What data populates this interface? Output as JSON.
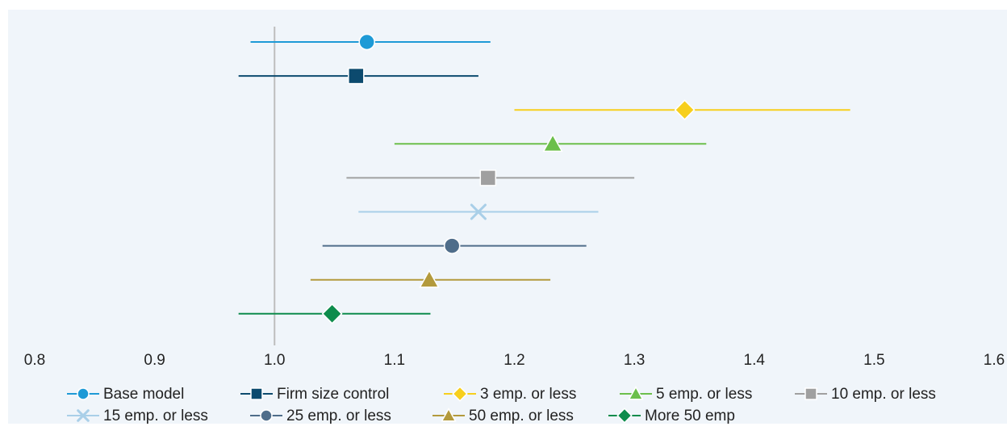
{
  "chart_data": {
    "type": "forest-plot",
    "title": "",
    "xlabel": "",
    "ylabel": "",
    "xlim": [
      0.8,
      1.6
    ],
    "x_ticks": [
      "0.8",
      "0.9",
      "1.0",
      "1.1",
      "1.2",
      "1.3",
      "1.4",
      "1.5",
      "1.6"
    ],
    "x_tick_values": [
      0.8,
      0.9,
      1.0,
      1.1,
      1.2,
      1.3,
      1.4,
      1.5,
      1.6
    ],
    "reference_line": 1.0,
    "grid": false,
    "legend_position": "bottom",
    "background_color": "#f0f5fa",
    "reference_line_color": "#bdbdbd",
    "series": [
      {
        "name": "Base model",
        "estimate": 1.077,
        "lower": 0.98,
        "upper": 1.18,
        "color": "#1e9ad6",
        "marker": "circle"
      },
      {
        "name": "Firm size control",
        "estimate": 1.068,
        "lower": 0.97,
        "upper": 1.17,
        "color": "#0c4a6e",
        "marker": "square"
      },
      {
        "name": "3 emp. or less",
        "estimate": 1.342,
        "lower": 1.2,
        "upper": 1.48,
        "color": "#f7cf1d",
        "marker": "diamond"
      },
      {
        "name": "5 emp. or less",
        "estimate": 1.232,
        "lower": 1.1,
        "upper": 1.36,
        "color": "#6cbf4b",
        "marker": "triangle"
      },
      {
        "name": "10 emp. or less",
        "estimate": 1.178,
        "lower": 1.06,
        "upper": 1.3,
        "color": "#a0a0a0",
        "marker": "square"
      },
      {
        "name": "15 emp. or less",
        "estimate": 1.17,
        "lower": 1.07,
        "upper": 1.27,
        "color": "#a9cfe8",
        "marker": "x"
      },
      {
        "name": "25 emp. or less",
        "estimate": 1.148,
        "lower": 1.04,
        "upper": 1.26,
        "color": "#4f6d8a",
        "marker": "circle"
      },
      {
        "name": "50 emp. or less",
        "estimate": 1.129,
        "lower": 1.03,
        "upper": 1.23,
        "color": "#b39a3c",
        "marker": "triangle"
      },
      {
        "name": "More 50 emp",
        "estimate": 1.048,
        "lower": 0.97,
        "upper": 1.13,
        "color": "#0e8c4c",
        "marker": "diamond"
      }
    ]
  }
}
